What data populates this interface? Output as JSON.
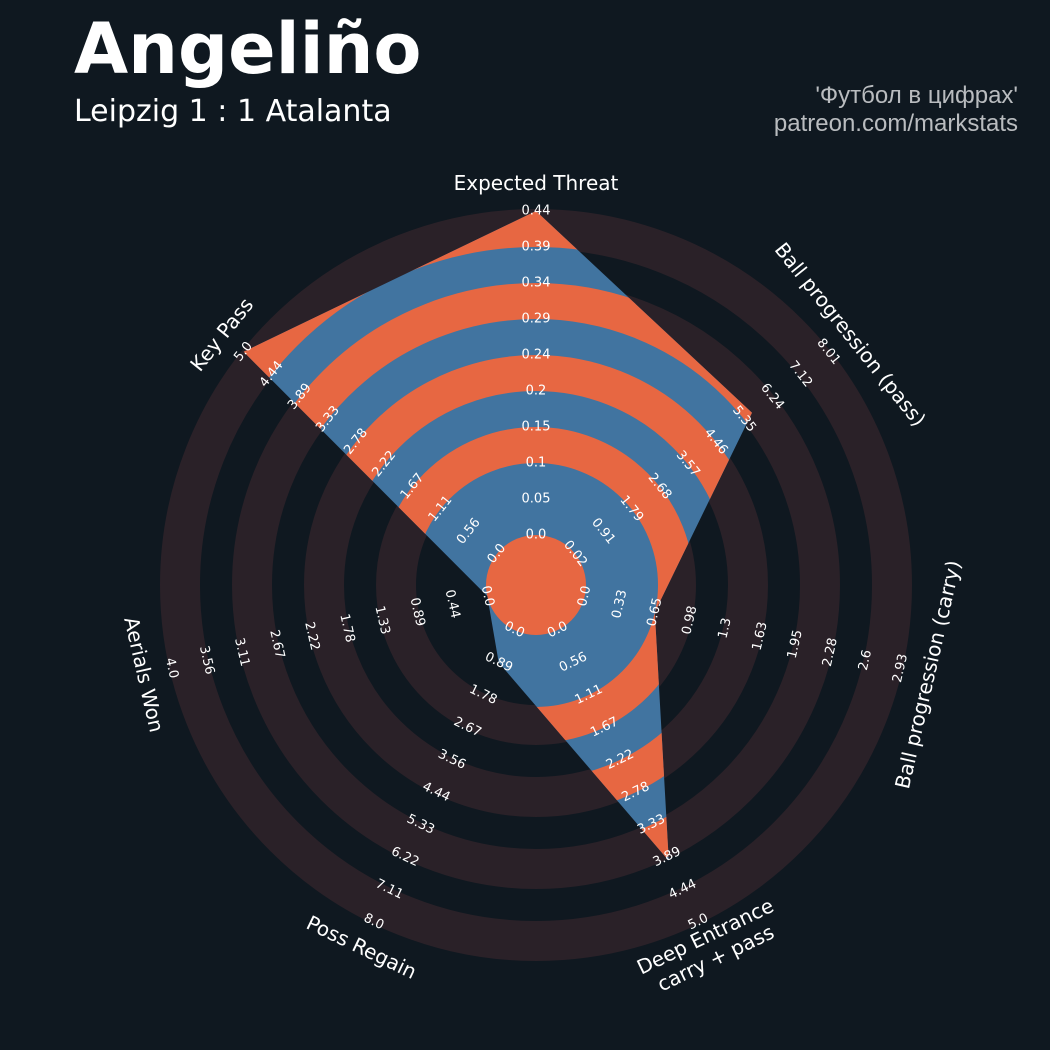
{
  "header": {
    "title": "Angeliño",
    "subtitle": "Leipzig 1 : 1 Atalanta",
    "credit_line1": "'Футбол в цифрах'",
    "credit_line2": "patreon.com/markstats"
  },
  "colors": {
    "background": "#0f1820",
    "ring_band": "#2a2128",
    "area_blue": "#4174a0",
    "area_orange": "#e76742",
    "text": "#ffffff"
  },
  "chart_data": {
    "type": "radar",
    "axes": [
      {
        "label": "Expected Threat",
        "value": 0.44,
        "ticks": [
          "0.0",
          "0.05",
          "0.1",
          "0.15",
          "0.2",
          "0.24",
          "0.29",
          "0.34",
          "0.39",
          "0.44"
        ]
      },
      {
        "label": "Ball progression (pass)",
        "value": 5.6,
        "ticks": [
          "0.02",
          "0.91",
          "1.79",
          "2.68",
          "3.57",
          "4.46",
          "5.35",
          "6.24",
          "7.12",
          "8.01"
        ]
      },
      {
        "label": "Ball progression (carry)",
        "value": 0.65,
        "ticks": [
          "0.0",
          "0.33",
          "0.65",
          "0.98",
          "1.3",
          "1.63",
          "1.95",
          "2.28",
          "2.6",
          "2.93"
        ]
      },
      {
        "label": "Deep Entrance\ncarry + pass",
        "value": 3.95,
        "ticks": [
          "0.0",
          "0.56",
          "1.11",
          "1.67",
          "2.22",
          "2.78",
          "3.33",
          "3.89",
          "4.44",
          "5.0"
        ]
      },
      {
        "label": "Poss Regain",
        "value": 0.89,
        "ticks": [
          "0.0",
          "0.89",
          "1.78",
          "2.67",
          "3.56",
          "4.44",
          "5.33",
          "6.22",
          "7.11",
          "8.0"
        ]
      },
      {
        "label": "Aerials Won",
        "value": 0.0,
        "ticks": [
          "0.0",
          "0.44",
          "0.89",
          "1.33",
          "1.78",
          "2.22",
          "2.67",
          "3.11",
          "3.56",
          "4.0"
        ]
      },
      {
        "label": "Key Pass",
        "value": 5.0,
        "ticks": [
          "0.0",
          "0.56",
          "1.11",
          "1.67",
          "2.22",
          "2.78",
          "3.33",
          "3.89",
          "4.44",
          "5.0"
        ]
      }
    ]
  }
}
